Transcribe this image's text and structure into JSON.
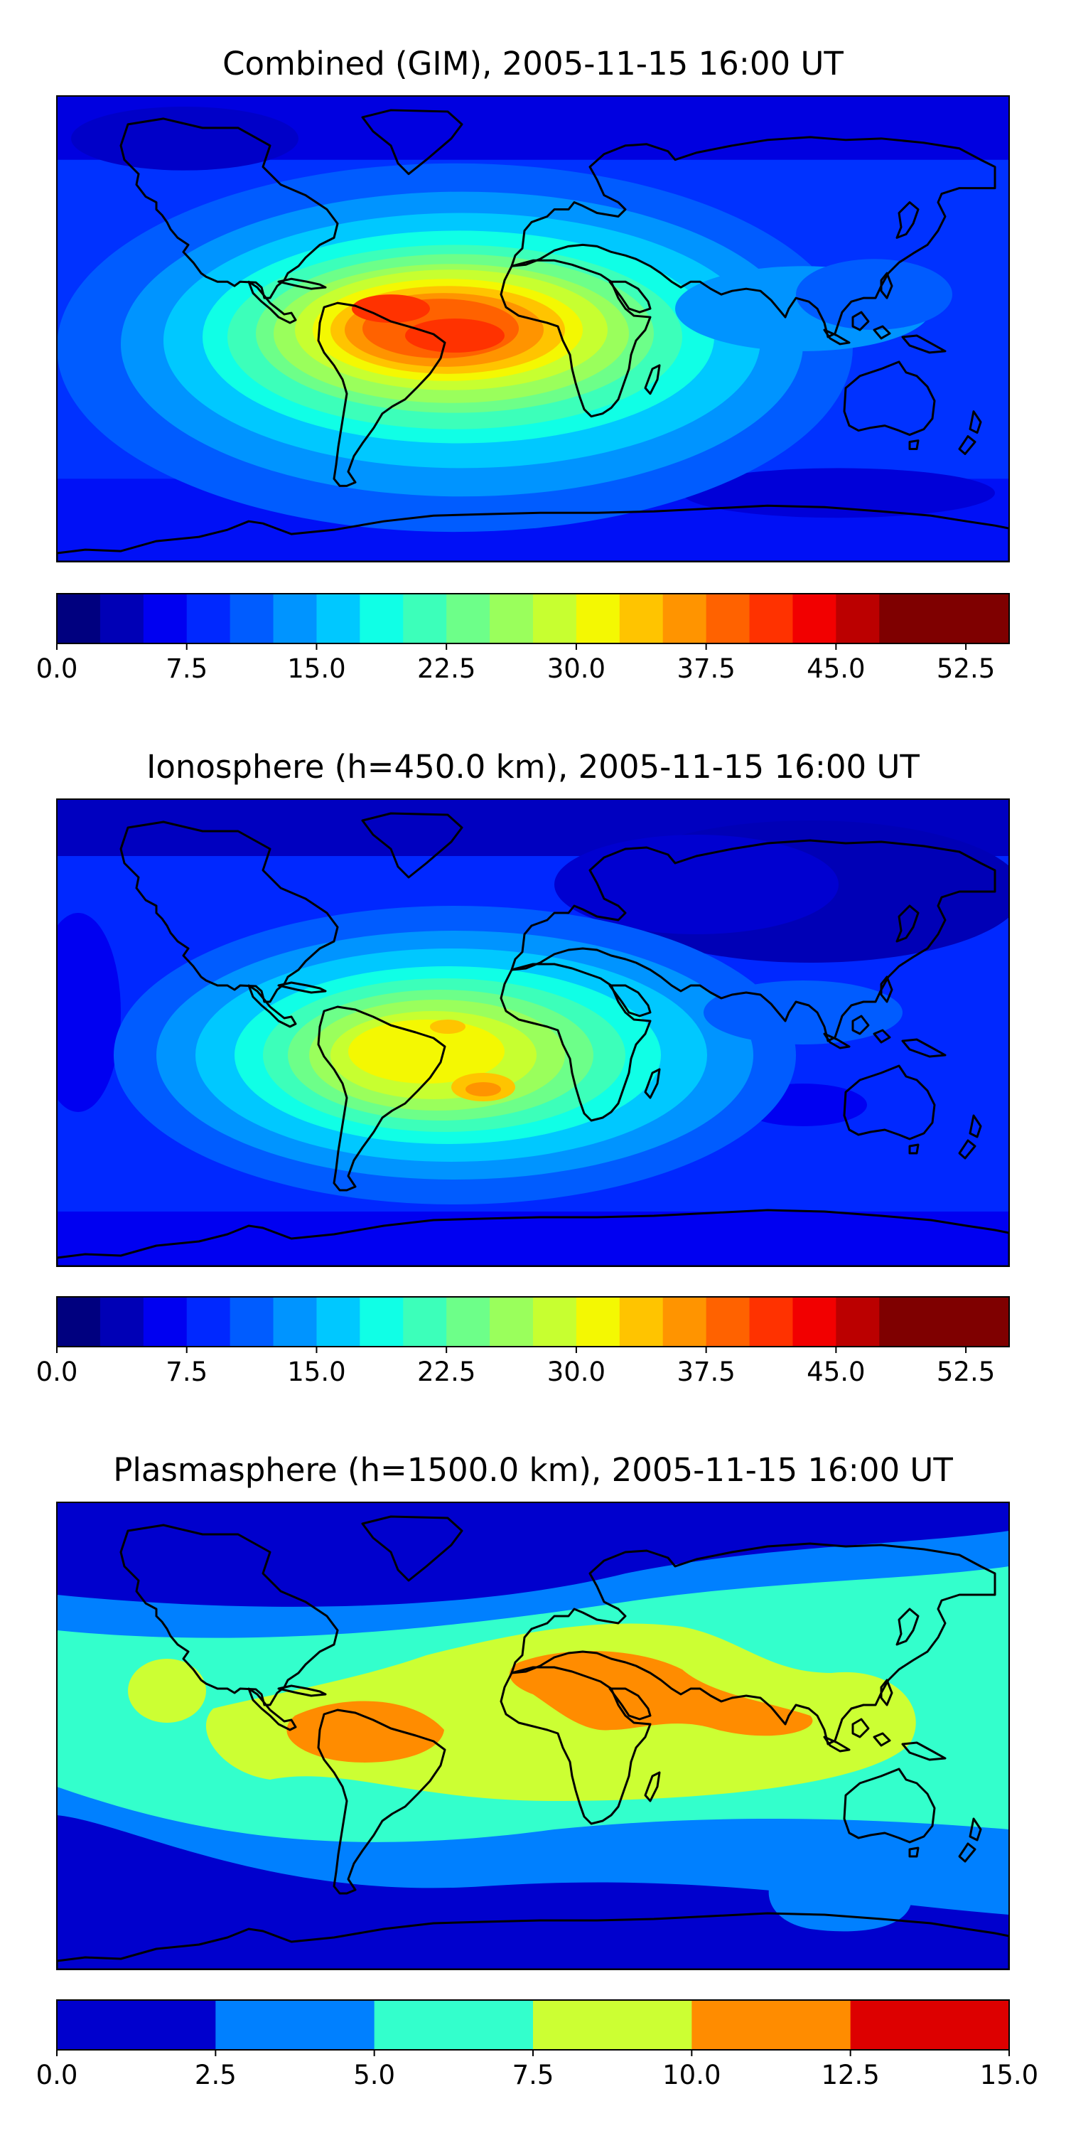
{
  "panels": [
    {
      "title": "Combined (GIM), 2005-11-15 16:00 UT",
      "colorbar": {
        "min": 0.0,
        "max": 55.0,
        "step": 2.5,
        "tick_labels": [
          "0.0",
          "7.5",
          "15.0",
          "22.5",
          "30.0",
          "37.5",
          "45.0",
          "52.5"
        ],
        "tick_values": [
          0.0,
          7.5,
          15.0,
          22.5,
          30.0,
          37.5,
          45.0,
          52.5
        ]
      }
    },
    {
      "title": "Ionosphere  (h=450.0 km), 2005-11-15 16:00 UT",
      "colorbar": {
        "min": 0.0,
        "max": 55.0,
        "step": 2.5,
        "tick_labels": [
          "0.0",
          "7.5",
          "15.0",
          "22.5",
          "30.0",
          "37.5",
          "45.0",
          "52.5"
        ],
        "tick_values": [
          0.0,
          7.5,
          15.0,
          22.5,
          30.0,
          37.5,
          45.0,
          52.5
        ]
      }
    },
    {
      "title": "Plasmasphere (h=1500.0 km), 2005-11-15 16:00 UT",
      "colorbar": {
        "min": 0.0,
        "max": 15.0,
        "step": 2.5,
        "tick_labels": [
          "0.0",
          "2.5",
          "5.0",
          "7.5",
          "10.0",
          "12.5",
          "15.0"
        ],
        "tick_values": [
          0.0,
          2.5,
          5.0,
          7.5,
          10.0,
          12.5,
          15.0
        ]
      }
    }
  ],
  "colors": {
    "jet22": [
      "#00007f",
      "#0000b6",
      "#0000f1",
      "#0028ff",
      "#005cff",
      "#0094ff",
      "#00c8ff",
      "#10ffe6",
      "#3cffba",
      "#6dff89",
      "#9aff5c",
      "#c7ff30",
      "#f4f802",
      "#ffc400",
      "#ff9400",
      "#ff6200",
      "#ff3200",
      "#f20000",
      "#bb0000",
      "#7f0000"
    ],
    "jet6": [
      "#0000cd",
      "#0080ff",
      "#33ffcc",
      "#ccff33",
      "#ff8c00",
      "#dd0000"
    ],
    "coast": "#000000"
  }
}
